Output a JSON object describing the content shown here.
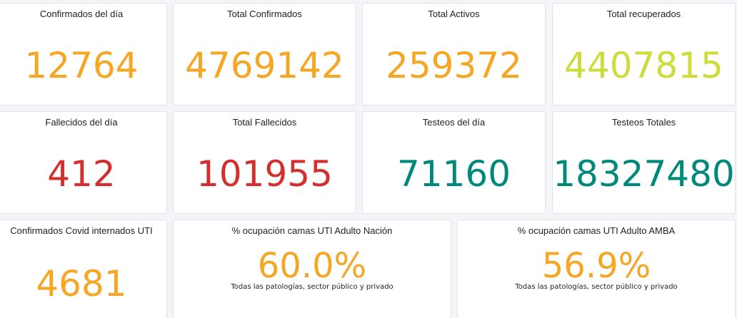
{
  "colors": {
    "orange": "#f5a623",
    "lime": "#cddc39",
    "red": "#d32f2f",
    "teal": "#00897b"
  },
  "cards": [
    {
      "label": "Confirmados del día",
      "value": "12764",
      "color": "#f5a623"
    },
    {
      "label": "Total Confirmados",
      "value": "4769142",
      "color": "#f5a623"
    },
    {
      "label": "Total Activos",
      "value": "259372",
      "color": "#f5a623"
    },
    {
      "label": "Total recuperados",
      "value": "4407815",
      "color": "#cddc39"
    },
    {
      "label": "Fallecidos del día",
      "value": "412",
      "color": "#d32f2f"
    },
    {
      "label": "Total Fallecidos",
      "value": "101955",
      "color": "#d32f2f"
    },
    {
      "label": "Testeos del día",
      "value": "71160",
      "color": "#00897b"
    },
    {
      "label": "Testeos Totales",
      "value": "18327480",
      "color": "#00897b"
    },
    {
      "label": "Confirmados Covid internados UTI",
      "value": "4681",
      "color": "#f5a623"
    },
    {
      "label": "% ocupación camas UTI Adulto Nación",
      "value": "60.0%",
      "sub": "Todas las patologías, sector público y privado",
      "color": "#f5a623"
    },
    {
      "label": "% ocupación camas UTI Adulto AMBA",
      "value": "56.9%",
      "sub": "Todas las patologías, sector público y privado",
      "color": "#f5a623"
    }
  ]
}
